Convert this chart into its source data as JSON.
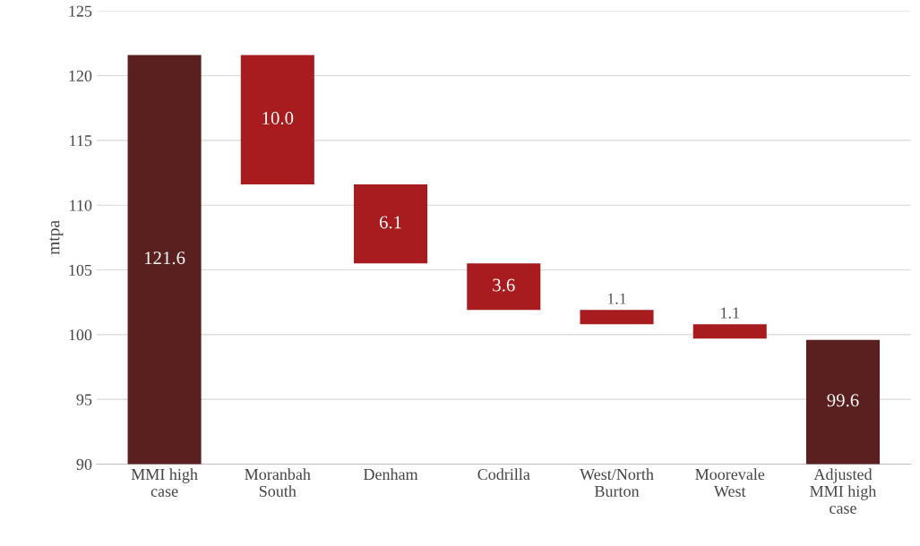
{
  "chart_data": {
    "type": "bar",
    "ylabel": "mtpa",
    "categories": [
      "MMI high\ncase",
      "Moranbah\nSouth",
      "Denham",
      "Codrilla",
      "West/North\nBurton",
      "Moorevale\nWest",
      "Adjusted\nMMI high\ncase"
    ],
    "values": [
      121.6,
      10.0,
      6.1,
      3.6,
      1.1,
      1.1,
      99.6
    ],
    "base": [
      0,
      111.6,
      105.5,
      101.9,
      100.8,
      99.7,
      0
    ],
    "colors": [
      "#5a1f1f",
      "#a81c1f",
      "#a81c1f",
      "#a81c1f",
      "#a81c1f",
      "#a81c1f",
      "#5a1f1f"
    ],
    "value_labels": [
      "121.6",
      "10.0",
      "6.1",
      "3.6",
      "1.1",
      "1.1",
      "99.6"
    ],
    "ylim": [
      90,
      125
    ],
    "yticks": [
      90,
      95,
      100,
      105,
      110,
      115,
      120,
      125
    ],
    "grid": "y"
  }
}
